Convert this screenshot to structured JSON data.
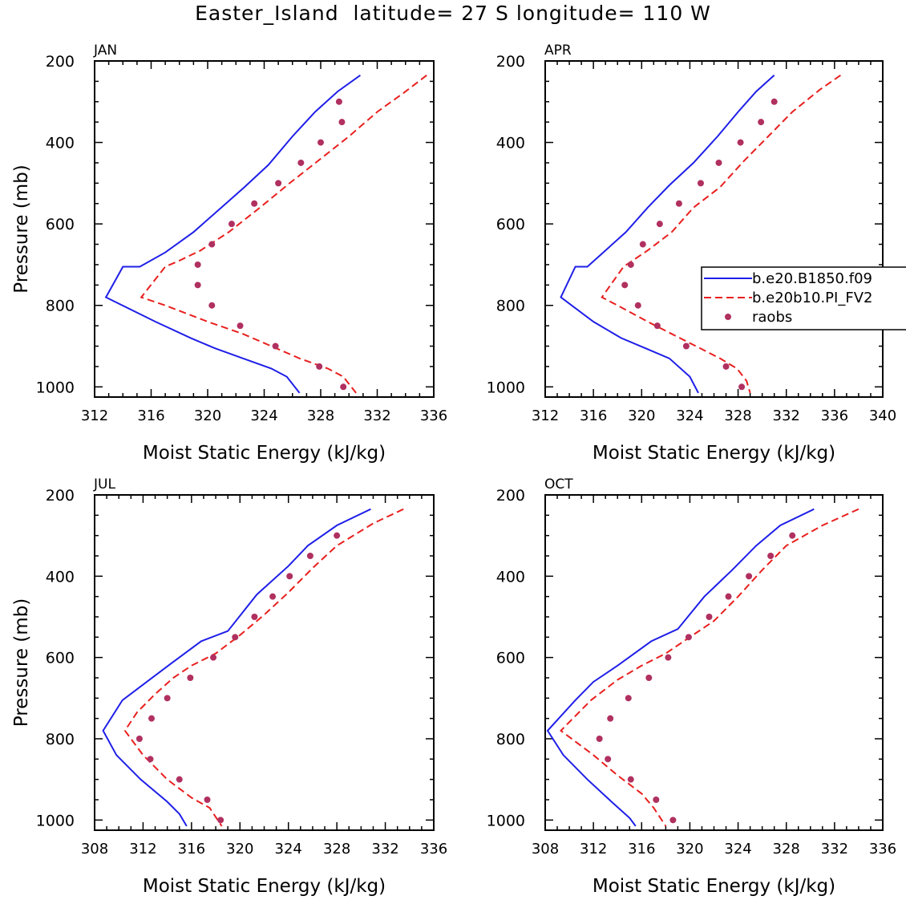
{
  "title": "Easter_Island  latitude= 27 S longitude= 110 W",
  "colors": {
    "model1": "#1f1fe8",
    "model2": "#e8201f",
    "obs": "#b03060",
    "axis": "#000000"
  },
  "legend": {
    "entries": [
      {
        "label": "b.e20.B1850.f09",
        "style": "solid",
        "color": "#1f1fe8"
      },
      {
        "label": "b.e20b10.PI_FV2",
        "style": "dashed",
        "color": "#e8201f"
      },
      {
        "label": "raobs",
        "style": "marker",
        "color": "#b03060"
      }
    ]
  },
  "chart_data": [
    {
      "type": "line",
      "month": "JAN",
      "xlabel": "Moist Static Energy (kJ/kg)",
      "ylabel": "Pressure (mb)",
      "xlim": [
        312,
        336
      ],
      "ylim": [
        200,
        1025
      ],
      "y_inverted": true,
      "xticks": [
        312,
        316,
        320,
        324,
        328,
        332,
        336
      ],
      "yticks": [
        200,
        400,
        600,
        800,
        1000
      ],
      "show_legend": false,
      "series": [
        {
          "name": "b.e20.B1850.f09",
          "style": "solid",
          "x": [
            330.8,
            329.2,
            327.6,
            326.0,
            324.3,
            322.6,
            320.8,
            319.0,
            317.0,
            315.2,
            314.0,
            312.8,
            316.3,
            318.8,
            320.5,
            322.5,
            324.5,
            325.6,
            326.5
          ],
          "y": [
            235,
            275,
            325,
            385,
            455,
            510,
            565,
            620,
            670,
            705,
            705,
            780,
            840,
            880,
            905,
            930,
            955,
            975,
            1015
          ]
        },
        {
          "name": "b.e20b10.PI_FV2",
          "style": "dashed",
          "x": [
            335.5,
            334.0,
            332.0,
            330.0,
            328.0,
            325.8,
            323.7,
            321.5,
            319.5,
            318.0,
            317.0,
            315.3,
            317.0,
            320.0,
            322.5,
            324.5,
            326.5,
            328.5,
            329.6,
            330.5
          ],
          "y": [
            235,
            275,
            325,
            385,
            440,
            500,
            560,
            620,
            665,
            690,
            705,
            780,
            800,
            840,
            870,
            900,
            930,
            955,
            975,
            1015
          ]
        },
        {
          "name": "raobs",
          "style": "marker",
          "x": [
            329.3,
            329.5,
            328.0,
            326.6,
            325.0,
            323.3,
            321.7,
            320.3,
            319.3,
            319.3,
            320.3,
            322.3,
            324.8,
            327.9,
            329.6
          ],
          "y": [
            300,
            350,
            400,
            450,
            500,
            550,
            600,
            650,
            700,
            750,
            800,
            850,
            900,
            950,
            1000
          ]
        }
      ]
    },
    {
      "type": "line",
      "month": "APR",
      "xlabel": "Moist Static Energy (kJ/kg)",
      "ylabel": "",
      "xlim": [
        312,
        340
      ],
      "ylim": [
        200,
        1025
      ],
      "y_inverted": true,
      "xticks": [
        312,
        316,
        320,
        324,
        328,
        332,
        336,
        340
      ],
      "yticks": [
        200,
        400,
        600,
        800,
        1000
      ],
      "show_legend": true,
      "series": [
        {
          "name": "b.e20.B1850.f09",
          "style": "solid",
          "x": [
            331.0,
            329.5,
            328.0,
            326.3,
            324.3,
            322.3,
            320.5,
            318.7,
            317.0,
            315.5,
            314.5,
            313.3,
            316.0,
            318.3,
            320.3,
            322.3,
            324.0,
            324.7
          ],
          "y": [
            235,
            275,
            325,
            385,
            450,
            505,
            560,
            620,
            665,
            705,
            705,
            780,
            840,
            880,
            905,
            930,
            975,
            1015
          ]
        },
        {
          "name": "b.e20b10.PI_FV2",
          "style": "dashed",
          "x": [
            336.5,
            334.8,
            332.5,
            330.5,
            328.5,
            326.5,
            324.3,
            322.5,
            320.5,
            318.5,
            316.7,
            318.0,
            320.5,
            322.5,
            324.5,
            326.5,
            327.9,
            328.7,
            329.0
          ],
          "y": [
            235,
            270,
            325,
            385,
            445,
            510,
            560,
            620,
            665,
            705,
            780,
            800,
            840,
            870,
            900,
            930,
            955,
            985,
            1015
          ]
        },
        {
          "name": "raobs",
          "style": "marker",
          "x": [
            331.0,
            329.9,
            328.2,
            326.4,
            324.9,
            323.1,
            321.5,
            320.1,
            319.1,
            318.6,
            319.7,
            321.3,
            323.7,
            327.0,
            328.3
          ],
          "y": [
            300,
            350,
            400,
            450,
            500,
            550,
            600,
            650,
            700,
            750,
            800,
            850,
            900,
            950,
            1000
          ]
        }
      ]
    },
    {
      "type": "line",
      "month": "JUL",
      "xlabel": "Moist Static Energy (kJ/kg)",
      "ylabel": "Pressure (mb)",
      "xlim": [
        308,
        336
      ],
      "ylim": [
        200,
        1025
      ],
      "y_inverted": true,
      "xticks": [
        308,
        312,
        316,
        320,
        324,
        328,
        332,
        336
      ],
      "yticks": [
        200,
        400,
        600,
        800,
        1000
      ],
      "show_legend": false,
      "series": [
        {
          "name": "b.e20.B1850.f09",
          "style": "solid",
          "x": [
            330.8,
            328.0,
            325.6,
            324.0,
            321.4,
            319.0,
            316.8,
            314.3,
            312.3,
            310.3,
            308.7,
            309.8,
            311.8,
            314.0,
            315.0,
            315.6
          ],
          "y": [
            235,
            275,
            325,
            375,
            445,
            535,
            560,
            615,
            660,
            705,
            780,
            840,
            900,
            955,
            985,
            1015
          ]
        },
        {
          "name": "b.e20b10.PI_FV2",
          "style": "dashed",
          "x": [
            333.5,
            331.0,
            328.0,
            326.0,
            324.0,
            322.0,
            320.0,
            318.0,
            316.0,
            314.5,
            313.0,
            311.5,
            310.5,
            312.0,
            314.0,
            316.0,
            317.5,
            318.5
          ],
          "y": [
            235,
            270,
            325,
            380,
            440,
            495,
            545,
            590,
            620,
            650,
            690,
            735,
            780,
            840,
            900,
            945,
            970,
            1015
          ]
        },
        {
          "name": "raobs",
          "style": "marker",
          "x": [
            328.0,
            325.8,
            324.1,
            322.7,
            321.2,
            319.6,
            317.8,
            315.9,
            314.0,
            312.7,
            311.7,
            312.6,
            315.0,
            317.3,
            318.4
          ],
          "y": [
            300,
            350,
            400,
            450,
            500,
            550,
            600,
            650,
            700,
            750,
            800,
            850,
            900,
            950,
            1000
          ]
        }
      ]
    },
    {
      "type": "line",
      "month": "OCT",
      "xlabel": "Moist Static Energy (kJ/kg)",
      "ylabel": "",
      "xlim": [
        308,
        336
      ],
      "ylim": [
        200,
        1025
      ],
      "y_inverted": true,
      "xticks": [
        308,
        312,
        316,
        320,
        324,
        328,
        332,
        336
      ],
      "yticks": [
        200,
        400,
        600,
        800,
        1000
      ],
      "show_legend": false,
      "series": [
        {
          "name": "b.e20.B1850.f09",
          "style": "solid",
          "x": [
            330.3,
            327.5,
            325.5,
            323.5,
            321.2,
            319.0,
            316.8,
            314.0,
            312.0,
            310.5,
            308.2,
            309.5,
            311.5,
            313.5,
            315.0,
            315.5
          ],
          "y": [
            235,
            275,
            325,
            385,
            450,
            530,
            560,
            620,
            660,
            705,
            780,
            840,
            900,
            955,
            995,
            1015
          ]
        },
        {
          "name": "b.e20b10.PI_FV2",
          "style": "dashed",
          "x": [
            334.0,
            331.0,
            328.0,
            326.0,
            324.0,
            322.0,
            320.0,
            318.0,
            316.0,
            314.0,
            311.8,
            309.3,
            312.0,
            314.0,
            316.0,
            317.0,
            318.0
          ],
          "y": [
            235,
            275,
            325,
            385,
            450,
            510,
            550,
            590,
            620,
            655,
            705,
            780,
            840,
            890,
            935,
            970,
            1015
          ]
        },
        {
          "name": "raobs",
          "style": "marker",
          "x": [
            328.5,
            326.7,
            324.9,
            323.2,
            321.6,
            319.9,
            318.2,
            316.6,
            314.9,
            313.4,
            312.5,
            313.2,
            315.1,
            317.2,
            318.6
          ],
          "y": [
            300,
            350,
            400,
            450,
            500,
            550,
            600,
            650,
            700,
            750,
            800,
            850,
            900,
            950,
            1000
          ]
        }
      ]
    }
  ]
}
